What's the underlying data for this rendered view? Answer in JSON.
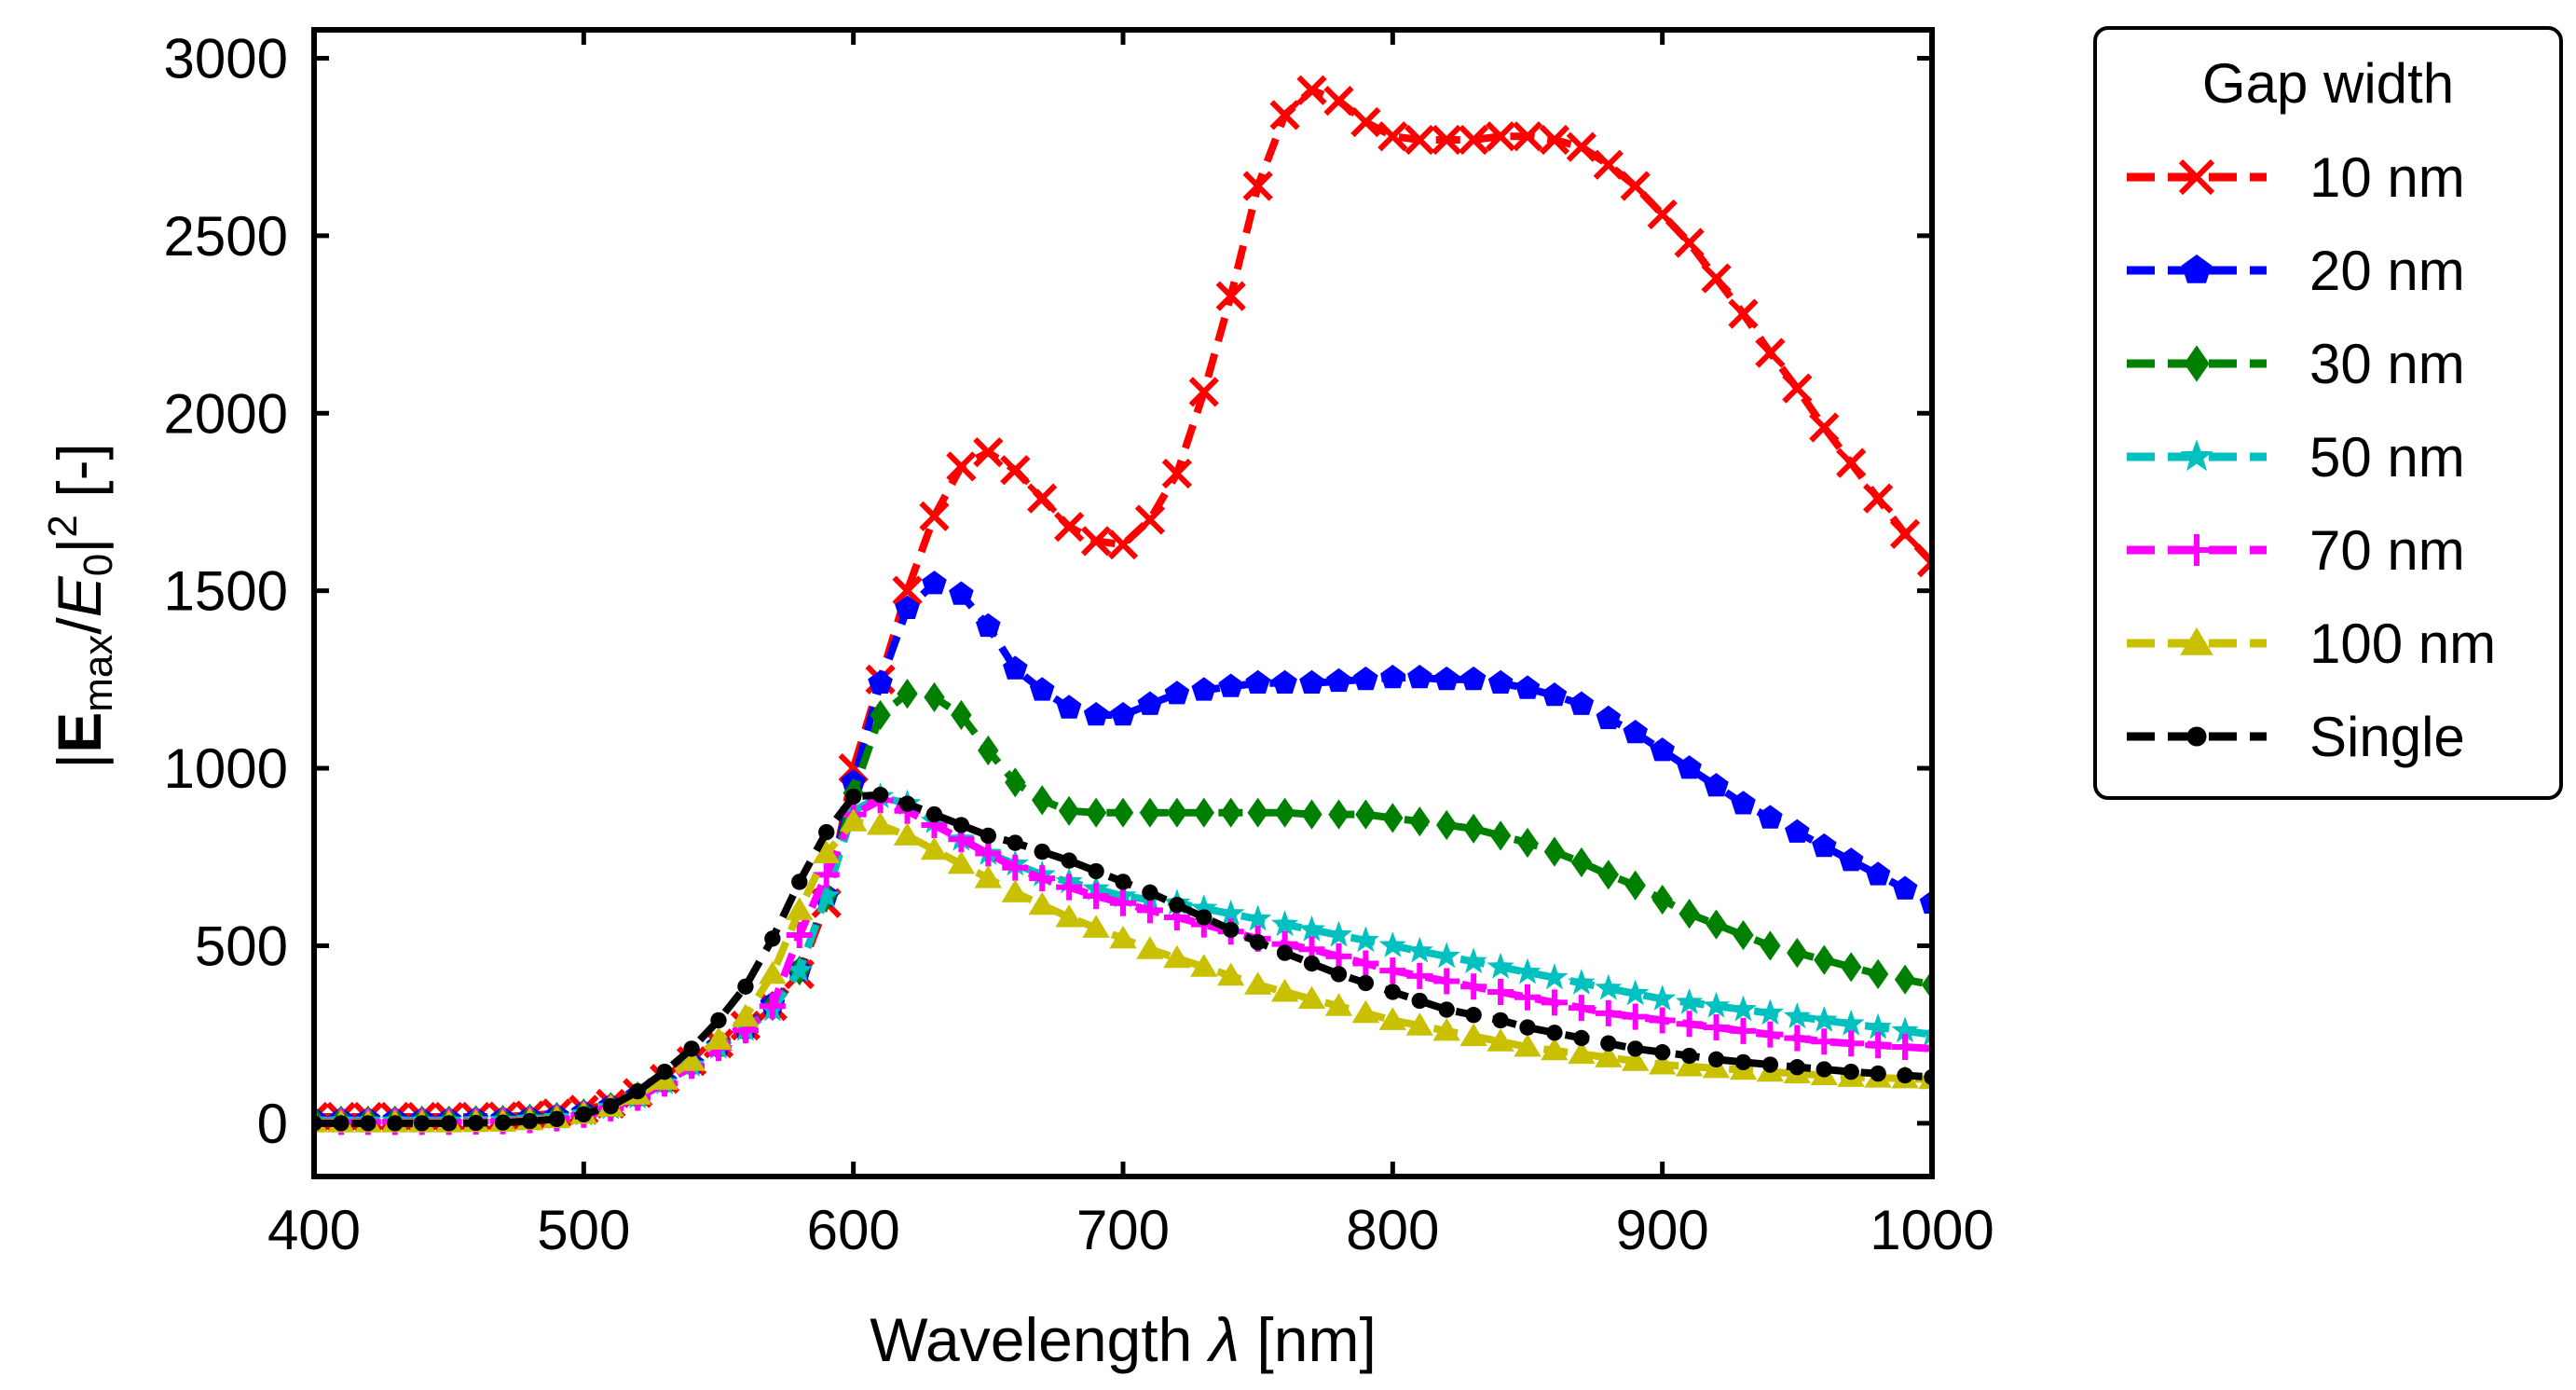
{
  "chart_data": {
    "type": "line",
    "title": "",
    "xlabel": "Wavelength λ [nm]",
    "xlabel_parts": {
      "text": "Wavelength ",
      "symbol": "λ",
      "unit": " [nm]"
    },
    "ylabel": "|Emax/E0|² [-]",
    "ylabel_parts": {
      "open": "|",
      "E": "E",
      "max": "max",
      "slash": "/",
      "E0": "E",
      "zero": "0",
      "close": "|",
      "sq": "2",
      "unit": " [-]"
    },
    "xlim": [
      400,
      1000
    ],
    "ylim": [
      -150,
      3080
    ],
    "xticks": [
      400,
      500,
      600,
      700,
      800,
      900,
      1000
    ],
    "yticks": [
      0,
      500,
      1000,
      1500,
      2000,
      2500,
      3000
    ],
    "grid": false,
    "legend": {
      "title": "Gap width",
      "position": "outside-right"
    },
    "x": [
      400,
      410,
      420,
      430,
      440,
      450,
      460,
      470,
      480,
      490,
      500,
      510,
      520,
      530,
      540,
      550,
      560,
      570,
      580,
      590,
      600,
      610,
      620,
      630,
      640,
      650,
      660,
      670,
      680,
      690,
      700,
      710,
      720,
      730,
      740,
      750,
      760,
      770,
      780,
      790,
      800,
      810,
      820,
      830,
      840,
      850,
      860,
      870,
      880,
      890,
      900,
      910,
      920,
      930,
      940,
      950,
      960,
      970,
      980,
      990,
      1000
    ],
    "series": [
      {
        "name": "10 nm",
        "color": "#ff0000",
        "marker": "x",
        "values": [
          18,
          18,
          18,
          18,
          18,
          18,
          18,
          19,
          22,
          28,
          38,
          55,
          85,
          125,
          175,
          225,
          275,
          330,
          420,
          620,
          1000,
          1250,
          1500,
          1710,
          1850,
          1890,
          1840,
          1760,
          1680,
          1640,
          1630,
          1700,
          1830,
          2060,
          2330,
          2640,
          2840,
          2910,
          2880,
          2820,
          2780,
          2770,
          2770,
          2770,
          2780,
          2780,
          2770,
          2750,
          2700,
          2640,
          2560,
          2480,
          2380,
          2280,
          2170,
          2070,
          1960,
          1860,
          1760,
          1660,
          1580
        ]
      },
      {
        "name": "20 nm",
        "color": "#0000ff",
        "marker": "pentagon",
        "values": [
          10,
          10,
          10,
          10,
          10,
          10,
          11,
          12,
          15,
          20,
          30,
          48,
          78,
          118,
          168,
          218,
          268,
          335,
          430,
          640,
          960,
          1240,
          1450,
          1520,
          1490,
          1400,
          1280,
          1220,
          1170,
          1150,
          1150,
          1180,
          1210,
          1220,
          1230,
          1240,
          1240,
          1240,
          1245,
          1250,
          1255,
          1255,
          1250,
          1250,
          1240,
          1225,
          1205,
          1180,
          1140,
          1100,
          1050,
          1000,
          950,
          900,
          860,
          820,
          780,
          740,
          700,
          660,
          620
        ]
      },
      {
        "name": "30 nm",
        "color": "#008000",
        "marker": "diamond",
        "values": [
          8,
          8,
          8,
          8,
          8,
          8,
          9,
          10,
          13,
          18,
          28,
          46,
          76,
          116,
          166,
          216,
          266,
          330,
          430,
          640,
          930,
          1150,
          1210,
          1200,
          1150,
          1050,
          960,
          910,
          880,
          875,
          875,
          875,
          875,
          875,
          875,
          875,
          875,
          870,
          870,
          870,
          860,
          850,
          840,
          830,
          810,
          790,
          765,
          735,
          700,
          670,
          630,
          590,
          560,
          530,
          500,
          480,
          460,
          440,
          420,
          405,
          390
        ]
      },
      {
        "name": "50 nm",
        "color": "#00c0c0",
        "marker": "star",
        "values": [
          6,
          6,
          6,
          6,
          6,
          6,
          7,
          8,
          11,
          16,
          26,
          44,
          74,
          114,
          164,
          214,
          264,
          320,
          430,
          640,
          880,
          920,
          900,
          850,
          800,
          760,
          730,
          700,
          680,
          660,
          640,
          630,
          620,
          605,
          590,
          575,
          560,
          545,
          530,
          515,
          500,
          485,
          470,
          455,
          440,
          425,
          410,
          395,
          380,
          365,
          350,
          340,
          330,
          320,
          310,
          300,
          290,
          280,
          270,
          260,
          250
        ]
      },
      {
        "name": "70 nm",
        "color": "#ff00ff",
        "marker": "plus",
        "values": [
          4,
          4,
          4,
          4,
          4,
          4,
          5,
          6,
          9,
          14,
          24,
          42,
          72,
          112,
          162,
          212,
          262,
          330,
          530,
          700,
          870,
          910,
          880,
          840,
          800,
          760,
          720,
          690,
          665,
          640,
          620,
          600,
          580,
          560,
          540,
          520,
          505,
          490,
          470,
          450,
          430,
          415,
          400,
          385,
          370,
          355,
          340,
          325,
          310,
          300,
          290,
          280,
          270,
          260,
          250,
          240,
          230,
          225,
          220,
          215,
          210
        ]
      },
      {
        "name": "100 nm",
        "color": "#c8c000",
        "marker": "triangle",
        "values": [
          2,
          2,
          2,
          2,
          2,
          2,
          3,
          4,
          8,
          14,
          26,
          46,
          80,
          122,
          175,
          235,
          300,
          420,
          600,
          760,
          850,
          840,
          810,
          770,
          730,
          690,
          650,
          615,
          580,
          550,
          520,
          490,
          465,
          440,
          415,
          390,
          370,
          350,
          330,
          310,
          290,
          275,
          260,
          245,
          230,
          215,
          205,
          195,
          185,
          175,
          165,
          160,
          155,
          150,
          145,
          140,
          135,
          130,
          128,
          126,
          124
        ]
      },
      {
        "name": "Single",
        "color": "#000000",
        "marker": "circle",
        "values": [
          0,
          0,
          0,
          0,
          0,
          0,
          1,
          2,
          6,
          12,
          25,
          48,
          90,
          145,
          210,
          290,
          385,
          520,
          680,
          820,
          920,
          925,
          900,
          870,
          840,
          810,
          790,
          765,
          740,
          710,
          680,
          650,
          615,
          580,
          545,
          510,
          480,
          450,
          420,
          395,
          370,
          345,
          320,
          305,
          290,
          270,
          255,
          240,
          225,
          210,
          200,
          190,
          180,
          172,
          165,
          158,
          152,
          145,
          140,
          135,
          130
        ]
      }
    ]
  }
}
